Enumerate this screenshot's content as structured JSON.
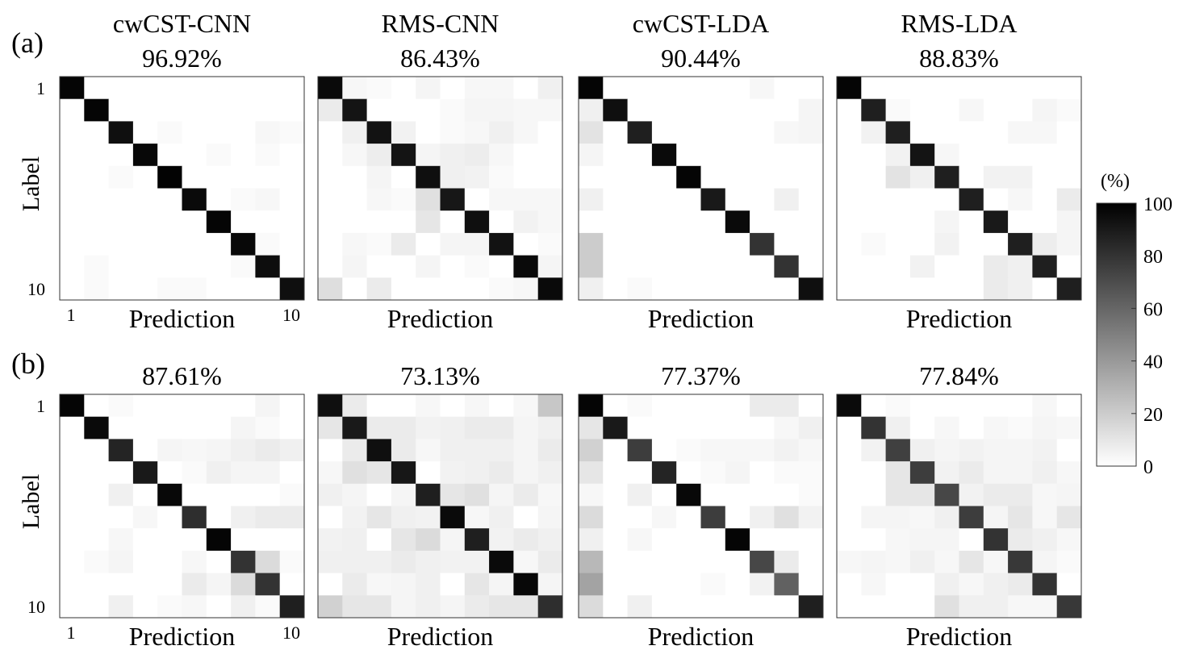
{
  "figure": {
    "row_labels": [
      "(a)",
      "(b)"
    ],
    "row_title_shown": [
      true,
      false
    ],
    "y_label": "Label",
    "x_label": "Prediction",
    "tick_first": "1",
    "tick_last": "10",
    "colorbar": {
      "unit": "(%)",
      "ticks": [
        "100",
        "80",
        "60",
        "40",
        "20",
        "0"
      ],
      "min": 0,
      "max": 100,
      "low_color": "#ffffff",
      "high_color": "#000000"
    }
  },
  "chart_data": [
    {
      "type": "heatmap",
      "row": "(a)",
      "title": "cwCST-CNN",
      "subtitle": "96.92%",
      "matrix": [
        [
          98,
          0,
          0,
          0,
          0,
          0,
          0,
          0,
          0,
          0
        ],
        [
          0,
          98,
          0,
          0,
          0,
          0,
          0,
          0,
          0,
          0
        ],
        [
          0,
          0,
          94,
          0,
          2,
          0,
          0,
          0,
          3,
          2
        ],
        [
          0,
          0,
          0,
          97,
          0,
          0,
          2,
          0,
          2,
          0
        ],
        [
          0,
          0,
          2,
          0,
          99,
          0,
          0,
          0,
          0,
          0
        ],
        [
          0,
          0,
          0,
          0,
          0,
          96,
          0,
          2,
          3,
          0
        ],
        [
          0,
          0,
          0,
          0,
          0,
          0,
          98,
          0,
          0,
          0
        ],
        [
          0,
          0,
          0,
          0,
          0,
          0,
          0,
          97,
          2,
          0
        ],
        [
          0,
          2,
          0,
          0,
          0,
          0,
          0,
          2,
          95,
          0
        ],
        [
          0,
          2,
          0,
          0,
          2,
          2,
          0,
          0,
          0,
          94
        ]
      ]
    },
    {
      "type": "heatmap",
      "row": "(a)",
      "title": "RMS-CNN",
      "subtitle": "86.43%",
      "matrix": [
        [
          96,
          3,
          2,
          0,
          4,
          0,
          3,
          3,
          0,
          6
        ],
        [
          8,
          92,
          0,
          0,
          0,
          2,
          4,
          4,
          3,
          3
        ],
        [
          0,
          6,
          93,
          5,
          0,
          2,
          3,
          6,
          3,
          0
        ],
        [
          0,
          3,
          7,
          92,
          4,
          6,
          7,
          3,
          0,
          0
        ],
        [
          0,
          0,
          4,
          0,
          94,
          6,
          5,
          2,
          0,
          0
        ],
        [
          0,
          0,
          3,
          2,
          12,
          91,
          0,
          3,
          3,
          3
        ],
        [
          0,
          0,
          0,
          0,
          10,
          0,
          94,
          0,
          5,
          3
        ],
        [
          0,
          3,
          2,
          8,
          0,
          4,
          4,
          93,
          0,
          2
        ],
        [
          0,
          4,
          0,
          0,
          4,
          0,
          2,
          0,
          96,
          4
        ],
        [
          13,
          0,
          8,
          0,
          0,
          0,
          0,
          2,
          3,
          96
        ]
      ]
    },
    {
      "type": "heatmap",
      "row": "(a)",
      "title": "cwCST-LDA",
      "subtitle": "90.44%",
      "matrix": [
        [
          98,
          0,
          0,
          0,
          0,
          0,
          0,
          3,
          0,
          0
        ],
        [
          6,
          94,
          0,
          0,
          0,
          0,
          0,
          0,
          0,
          4
        ],
        [
          11,
          0,
          88,
          0,
          0,
          0,
          0,
          0,
          3,
          4
        ],
        [
          4,
          0,
          0,
          96,
          0,
          0,
          0,
          0,
          0,
          0
        ],
        [
          0,
          0,
          0,
          0,
          98,
          0,
          0,
          0,
          0,
          0
        ],
        [
          6,
          0,
          0,
          0,
          0,
          90,
          0,
          0,
          6,
          0
        ],
        [
          0,
          0,
          0,
          0,
          0,
          0,
          96,
          0,
          0,
          0
        ],
        [
          20,
          0,
          0,
          0,
          0,
          0,
          0,
          80,
          0,
          0
        ],
        [
          20,
          0,
          0,
          0,
          0,
          0,
          0,
          0,
          80,
          0
        ],
        [
          6,
          0,
          2,
          0,
          0,
          0,
          0,
          0,
          0,
          94
        ]
      ]
    },
    {
      "type": "heatmap",
      "row": "(a)",
      "title": "RMS-LDA",
      "subtitle": "88.83%",
      "matrix": [
        [
          98,
          0,
          0,
          0,
          0,
          0,
          0,
          0,
          0,
          0
        ],
        [
          0,
          88,
          2,
          0,
          0,
          3,
          0,
          0,
          4,
          2
        ],
        [
          0,
          5,
          88,
          0,
          0,
          0,
          0,
          3,
          3,
          0
        ],
        [
          0,
          0,
          5,
          92,
          3,
          0,
          0,
          0,
          0,
          0
        ],
        [
          0,
          0,
          11,
          6,
          88,
          0,
          5,
          5,
          0,
          0
        ],
        [
          0,
          0,
          0,
          0,
          0,
          88,
          0,
          3,
          0,
          8
        ],
        [
          0,
          0,
          0,
          0,
          4,
          0,
          90,
          0,
          0,
          4
        ],
        [
          0,
          2,
          0,
          0,
          5,
          0,
          0,
          88,
          7,
          4
        ],
        [
          0,
          0,
          0,
          5,
          0,
          0,
          8,
          6,
          88,
          0
        ],
        [
          0,
          0,
          0,
          0,
          0,
          0,
          8,
          6,
          0,
          88
        ]
      ]
    },
    {
      "type": "heatmap",
      "row": "(b)",
      "title": "",
      "subtitle": "87.61%",
      "matrix": [
        [
          98,
          0,
          2,
          0,
          0,
          0,
          0,
          0,
          4,
          0
        ],
        [
          0,
          96,
          0,
          0,
          0,
          0,
          0,
          4,
          2,
          0
        ],
        [
          0,
          0,
          86,
          0,
          4,
          3,
          4,
          6,
          8,
          6
        ],
        [
          0,
          0,
          0,
          90,
          0,
          2,
          6,
          4,
          4,
          0
        ],
        [
          0,
          0,
          6,
          0,
          97,
          0,
          0,
          0,
          0,
          2
        ],
        [
          0,
          0,
          0,
          3,
          0,
          82,
          0,
          6,
          8,
          8
        ],
        [
          0,
          0,
          3,
          0,
          0,
          0,
          98,
          0,
          0,
          0
        ],
        [
          0,
          2,
          4,
          0,
          0,
          3,
          0,
          80,
          14,
          2
        ],
        [
          0,
          0,
          0,
          0,
          0,
          8,
          4,
          14,
          80,
          0
        ],
        [
          0,
          0,
          6,
          0,
          2,
          3,
          0,
          6,
          2,
          88
        ]
      ]
    },
    {
      "type": "heatmap",
      "row": "(b)",
      "title": "",
      "subtitle": "73.13%",
      "matrix": [
        [
          94,
          8,
          0,
          0,
          3,
          0,
          3,
          0,
          3,
          22
        ],
        [
          10,
          90,
          8,
          8,
          5,
          6,
          8,
          8,
          4,
          6
        ],
        [
          0,
          8,
          94,
          8,
          3,
          6,
          6,
          6,
          4,
          8
        ],
        [
          3,
          12,
          10,
          91,
          0,
          5,
          6,
          8,
          4,
          6
        ],
        [
          6,
          4,
          0,
          4,
          88,
          10,
          12,
          4,
          8,
          3
        ],
        [
          0,
          5,
          10,
          6,
          5,
          96,
          3,
          6,
          0,
          4
        ],
        [
          5,
          6,
          0,
          10,
          14,
          4,
          88,
          5,
          8,
          6
        ],
        [
          6,
          6,
          6,
          8,
          6,
          5,
          5,
          96,
          3,
          8
        ],
        [
          0,
          8,
          3,
          4,
          6,
          0,
          10,
          4,
          97,
          4
        ],
        [
          18,
          10,
          10,
          4,
          6,
          4,
          8,
          10,
          10,
          82
        ]
      ]
    },
    {
      "type": "heatmap",
      "row": "(b)",
      "title": "",
      "subtitle": "77.37%",
      "matrix": [
        [
          98,
          0,
          2,
          0,
          0,
          0,
          0,
          8,
          8,
          0
        ],
        [
          10,
          90,
          0,
          0,
          0,
          0,
          0,
          0,
          3,
          6
        ],
        [
          18,
          0,
          76,
          0,
          2,
          3,
          3,
          3,
          5,
          3
        ],
        [
          10,
          0,
          0,
          86,
          0,
          2,
          4,
          0,
          2,
          2
        ],
        [
          3,
          0,
          6,
          0,
          97,
          0,
          0,
          0,
          0,
          2
        ],
        [
          14,
          0,
          0,
          3,
          0,
          76,
          0,
          6,
          12,
          5
        ],
        [
          6,
          0,
          3,
          0,
          0,
          0,
          98,
          0,
          0,
          0
        ],
        [
          28,
          0,
          0,
          0,
          0,
          0,
          0,
          72,
          8,
          0
        ],
        [
          36,
          0,
          0,
          0,
          0,
          2,
          0,
          5,
          62,
          0
        ],
        [
          14,
          0,
          6,
          0,
          0,
          0,
          0,
          0,
          0,
          88
        ]
      ]
    },
    {
      "type": "heatmap",
      "row": "(b)",
      "title": "",
      "subtitle": "77.84%",
      "matrix": [
        [
          96,
          0,
          2,
          0,
          0,
          0,
          0,
          0,
          3,
          0
        ],
        [
          0,
          80,
          6,
          0,
          3,
          0,
          3,
          2,
          4,
          3
        ],
        [
          0,
          5,
          75,
          6,
          4,
          5,
          4,
          4,
          5,
          0
        ],
        [
          0,
          0,
          10,
          76,
          5,
          8,
          4,
          4,
          6,
          3
        ],
        [
          0,
          0,
          10,
          10,
          72,
          5,
          8,
          8,
          3,
          4
        ],
        [
          0,
          4,
          4,
          3,
          6,
          76,
          4,
          10,
          3,
          10
        ],
        [
          0,
          0,
          3,
          4,
          4,
          0,
          80,
          8,
          6,
          3
        ],
        [
          3,
          4,
          3,
          6,
          3,
          10,
          3,
          78,
          4,
          2
        ],
        [
          0,
          3,
          0,
          0,
          6,
          3,
          6,
          8,
          80,
          0
        ],
        [
          0,
          0,
          0,
          0,
          12,
          6,
          6,
          3,
          3,
          78
        ]
      ]
    }
  ]
}
